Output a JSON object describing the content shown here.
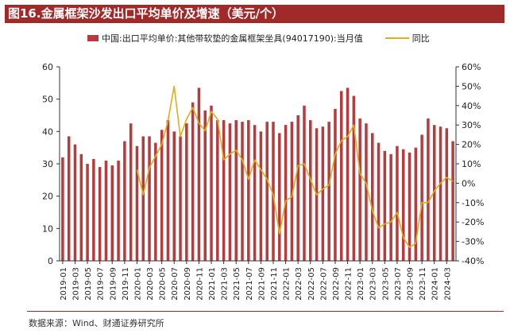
{
  "title": "图16.金属框架沙发出口平均单价及增速（美元/个）",
  "legend": {
    "bar_label": "中国:出口平均单价:其他带软垫的金属框架坐具(94017190):当月值",
    "line_label": "同比"
  },
  "source": "数据来源：Wind、财通证券研究所",
  "colors": {
    "bar": "#b83a3d",
    "line": "#e1ad1b",
    "title_bg": "#a02a2a"
  },
  "chart_data": {
    "type": "bar",
    "x": [
      "2019-01",
      "2019-02",
      "2019-03",
      "2019-04",
      "2019-05",
      "2019-06",
      "2019-07",
      "2019-08",
      "2019-09",
      "2019-10",
      "2019-11",
      "2019-12",
      "2020-01",
      "2020-02",
      "2020-03",
      "2020-04",
      "2020-05",
      "2020-06",
      "2020-07",
      "2020-08",
      "2020-09",
      "2020-10",
      "2020-11",
      "2020-12",
      "2021-01",
      "2021-02",
      "2021-03",
      "2021-04",
      "2021-05",
      "2021-06",
      "2021-07",
      "2021-08",
      "2021-09",
      "2021-10",
      "2021-11",
      "2021-12",
      "2022-01",
      "2022-02",
      "2022-03",
      "2022-04",
      "2022-05",
      "2022-06",
      "2022-07",
      "2022-08",
      "2022-09",
      "2022-10",
      "2022-11",
      "2022-12",
      "2023-01",
      "2023-02",
      "2023-03",
      "2023-04",
      "2023-05",
      "2023-06",
      "2023-07",
      "2023-08",
      "2023-09",
      "2023-10",
      "2023-11",
      "2023-12",
      "2024-01",
      "2024-02",
      "2024-03",
      "2024-04"
    ],
    "xtick_labels": [
      "2019-01",
      "2019-03",
      "2019-05",
      "2019-07",
      "2019-09",
      "2019-11",
      "2020-01",
      "2020-03",
      "2020-05",
      "2020-07",
      "2020-09",
      "2020-11",
      "2021-01",
      "2021-03",
      "2021-05",
      "2021-07",
      "2021-09",
      "2021-11",
      "2022-01",
      "2022-03",
      "2022-05",
      "2022-07",
      "2022-09",
      "2022-11",
      "2023-01",
      "2023-03",
      "2023-05",
      "2023-07",
      "2023-09",
      "2023-11",
      "2024-01",
      "2024-03"
    ],
    "series": [
      {
        "name": "中国:出口平均单价:其他带软垫的金属框架坐具(94017190):当月值",
        "type": "bar",
        "axis": "left",
        "values": [
          32,
          38.5,
          36,
          33,
          30,
          31.5,
          29,
          31,
          29.5,
          31,
          37,
          42.5,
          35.5,
          38.5,
          38.5,
          36.5,
          40.5,
          43.5,
          40,
          38.5,
          42.5,
          49,
          53.5,
          46.5,
          48,
          43.5,
          43.5,
          42.5,
          43.5,
          43,
          43.5,
          42,
          40,
          43,
          43,
          39.5,
          42,
          43,
          45,
          48,
          43.5,
          41,
          41.5,
          43,
          47,
          52.5,
          53.5,
          51,
          44,
          42.5,
          39.5,
          36.5,
          34,
          33,
          35.5,
          34.5,
          33.5,
          35,
          39,
          44,
          42,
          41.5,
          41,
          37
        ]
      },
      {
        "name": "同比",
        "type": "line",
        "axis": "right",
        "values": [
          null,
          null,
          null,
          null,
          null,
          null,
          null,
          null,
          null,
          null,
          null,
          null,
          7,
          -6,
          8,
          14,
          20,
          32,
          50,
          24,
          33,
          39,
          31,
          27,
          37,
          33,
          12,
          15,
          17,
          12,
          2,
          12,
          7,
          2,
          -6,
          -26,
          -9,
          -7,
          9,
          10,
          2,
          -6,
          -3,
          -1,
          15,
          22,
          24,
          30,
          5,
          0,
          -14,
          -23,
          -21,
          -20,
          -15,
          -28,
          -33,
          -31,
          -10,
          -10,
          -4,
          0,
          3,
          1
        ]
      }
    ],
    "y_left": {
      "min": 0,
      "max": 60,
      "ticks": [
        0,
        10,
        20,
        30,
        40,
        50,
        60
      ]
    },
    "y_right": {
      "min": -40,
      "max": 60,
      "ticks": [
        "-40%",
        "-30%",
        "-20%",
        "-10%",
        "0%",
        "10%",
        "20%",
        "30%",
        "40%",
        "50%",
        "60%"
      ]
    },
    "grid": false,
    "legend_position": "top"
  }
}
